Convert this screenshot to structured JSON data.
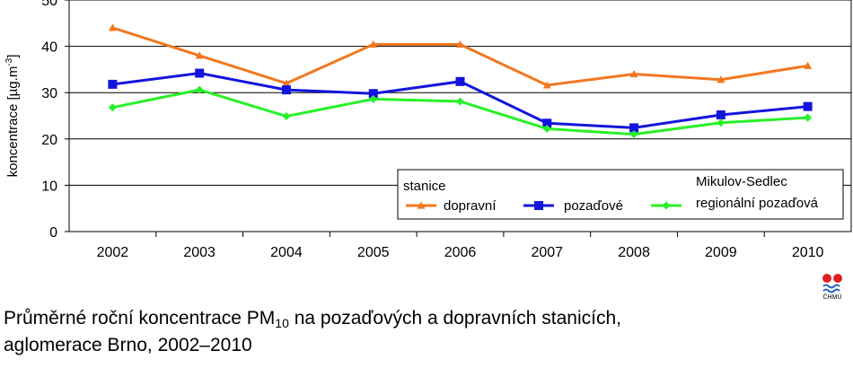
{
  "chart_data": {
    "type": "line",
    "ylabel": "koncentrace [µg.m",
    "ylabel_sup": "-3",
    "ylabel_end": "]",
    "ylim": [
      0,
      50
    ],
    "yticks": [
      "0",
      "10",
      "20",
      "30",
      "40",
      "50"
    ],
    "categories": [
      "2002",
      "2003",
      "2004",
      "2005",
      "2006",
      "2007",
      "2008",
      "2009",
      "2010"
    ],
    "grid": true,
    "legend_placement": "bottom-right",
    "legend_title": "stanice",
    "legend_group_title": "Mikulov-Sedlec",
    "series": [
      {
        "name": "dopravní",
        "color": "#f07820",
        "marker": "triangle",
        "values": [
          44.0,
          38.0,
          32.0,
          40.4,
          40.4,
          31.6,
          34.0,
          32.8,
          35.8
        ]
      },
      {
        "name": "pozaďové",
        "color": "#1414dc",
        "marker": "square",
        "values": [
          31.8,
          34.2,
          30.6,
          29.8,
          32.4,
          23.4,
          22.4,
          25.2,
          27.0
        ]
      },
      {
        "name": "regionální pozaďová",
        "color": "#28f028",
        "marker": "diamond",
        "values": [
          26.8,
          30.6,
          24.9,
          28.6,
          28.1,
          22.2,
          21.0,
          23.5,
          24.6
        ]
      }
    ]
  },
  "caption": {
    "line1_pre": "Průměrné roční koncentrace PM",
    "line1_sub": "10",
    "line1_post": " na pozaďových a dopravních stanicích,",
    "line2": "aglomerace Brno, 2002–2010"
  },
  "logo": {
    "text": "ČHMÚ",
    "colors": [
      "#e02020",
      "#2060c0"
    ]
  }
}
